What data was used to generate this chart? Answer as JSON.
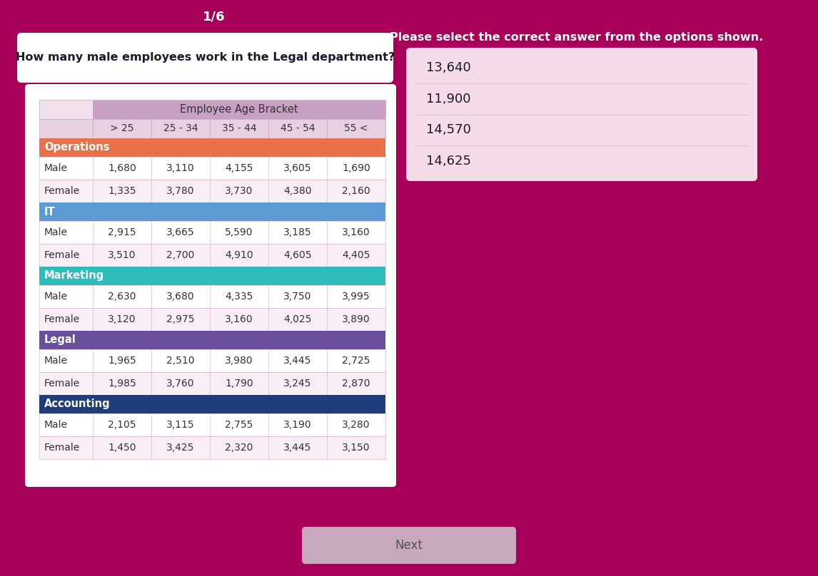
{
  "background_color": "#a8005a",
  "page_indicator": "1/6",
  "question": "How many male employees work in the Legal department?",
  "table_header": "Employee Age Bracket",
  "col_headers": [
    "> 25",
    "25 - 34",
    "35 - 44",
    "45 - 54",
    "55 <"
  ],
  "departments": [
    {
      "name": "Operations",
      "color": "#e8714a",
      "text_color": "#ffffff",
      "rows": [
        {
          "label": "Male",
          "values": [
            "1,680",
            "3,110",
            "4,155",
            "3,605",
            "1,690"
          ]
        },
        {
          "label": "Female",
          "values": [
            "1,335",
            "3,780",
            "3,730",
            "4,380",
            "2,160"
          ]
        }
      ]
    },
    {
      "name": "IT",
      "color": "#5b9bd5",
      "text_color": "#ffffff",
      "rows": [
        {
          "label": "Male",
          "values": [
            "2,915",
            "3,665",
            "5,590",
            "3,185",
            "3,160"
          ]
        },
        {
          "label": "Female",
          "values": [
            "3,510",
            "2,700",
            "4,910",
            "4,605",
            "4,405"
          ]
        }
      ]
    },
    {
      "name": "Marketing",
      "color": "#2bbcbb",
      "text_color": "#ffffff",
      "rows": [
        {
          "label": "Male",
          "values": [
            "2,630",
            "3,680",
            "4,335",
            "3,750",
            "3,995"
          ]
        },
        {
          "label": "Female",
          "values": [
            "3,120",
            "2,975",
            "3,160",
            "4,025",
            "3,890"
          ]
        }
      ]
    },
    {
      "name": "Legal",
      "color": "#6b4f9e",
      "text_color": "#ffffff",
      "rows": [
        {
          "label": "Male",
          "values": [
            "1,965",
            "2,510",
            "3,980",
            "3,445",
            "2,725"
          ]
        },
        {
          "label": "Female",
          "values": [
            "1,985",
            "3,760",
            "1,790",
            "3,245",
            "2,870"
          ]
        }
      ]
    },
    {
      "name": "Accounting",
      "color": "#1f3d7a",
      "text_color": "#ffffff",
      "rows": [
        {
          "label": "Male",
          "values": [
            "2,105",
            "3,115",
            "2,755",
            "3,190",
            "3,280"
          ]
        },
        {
          "label": "Female",
          "values": [
            "1,450",
            "3,425",
            "2,320",
            "3,445",
            "3,150"
          ]
        }
      ]
    }
  ],
  "answer_options": [
    "13,640",
    "11,900",
    "14,570",
    "14,625"
  ],
  "right_panel_title": "Please select the correct answer from the options shown.",
  "next_button_text": "Next"
}
